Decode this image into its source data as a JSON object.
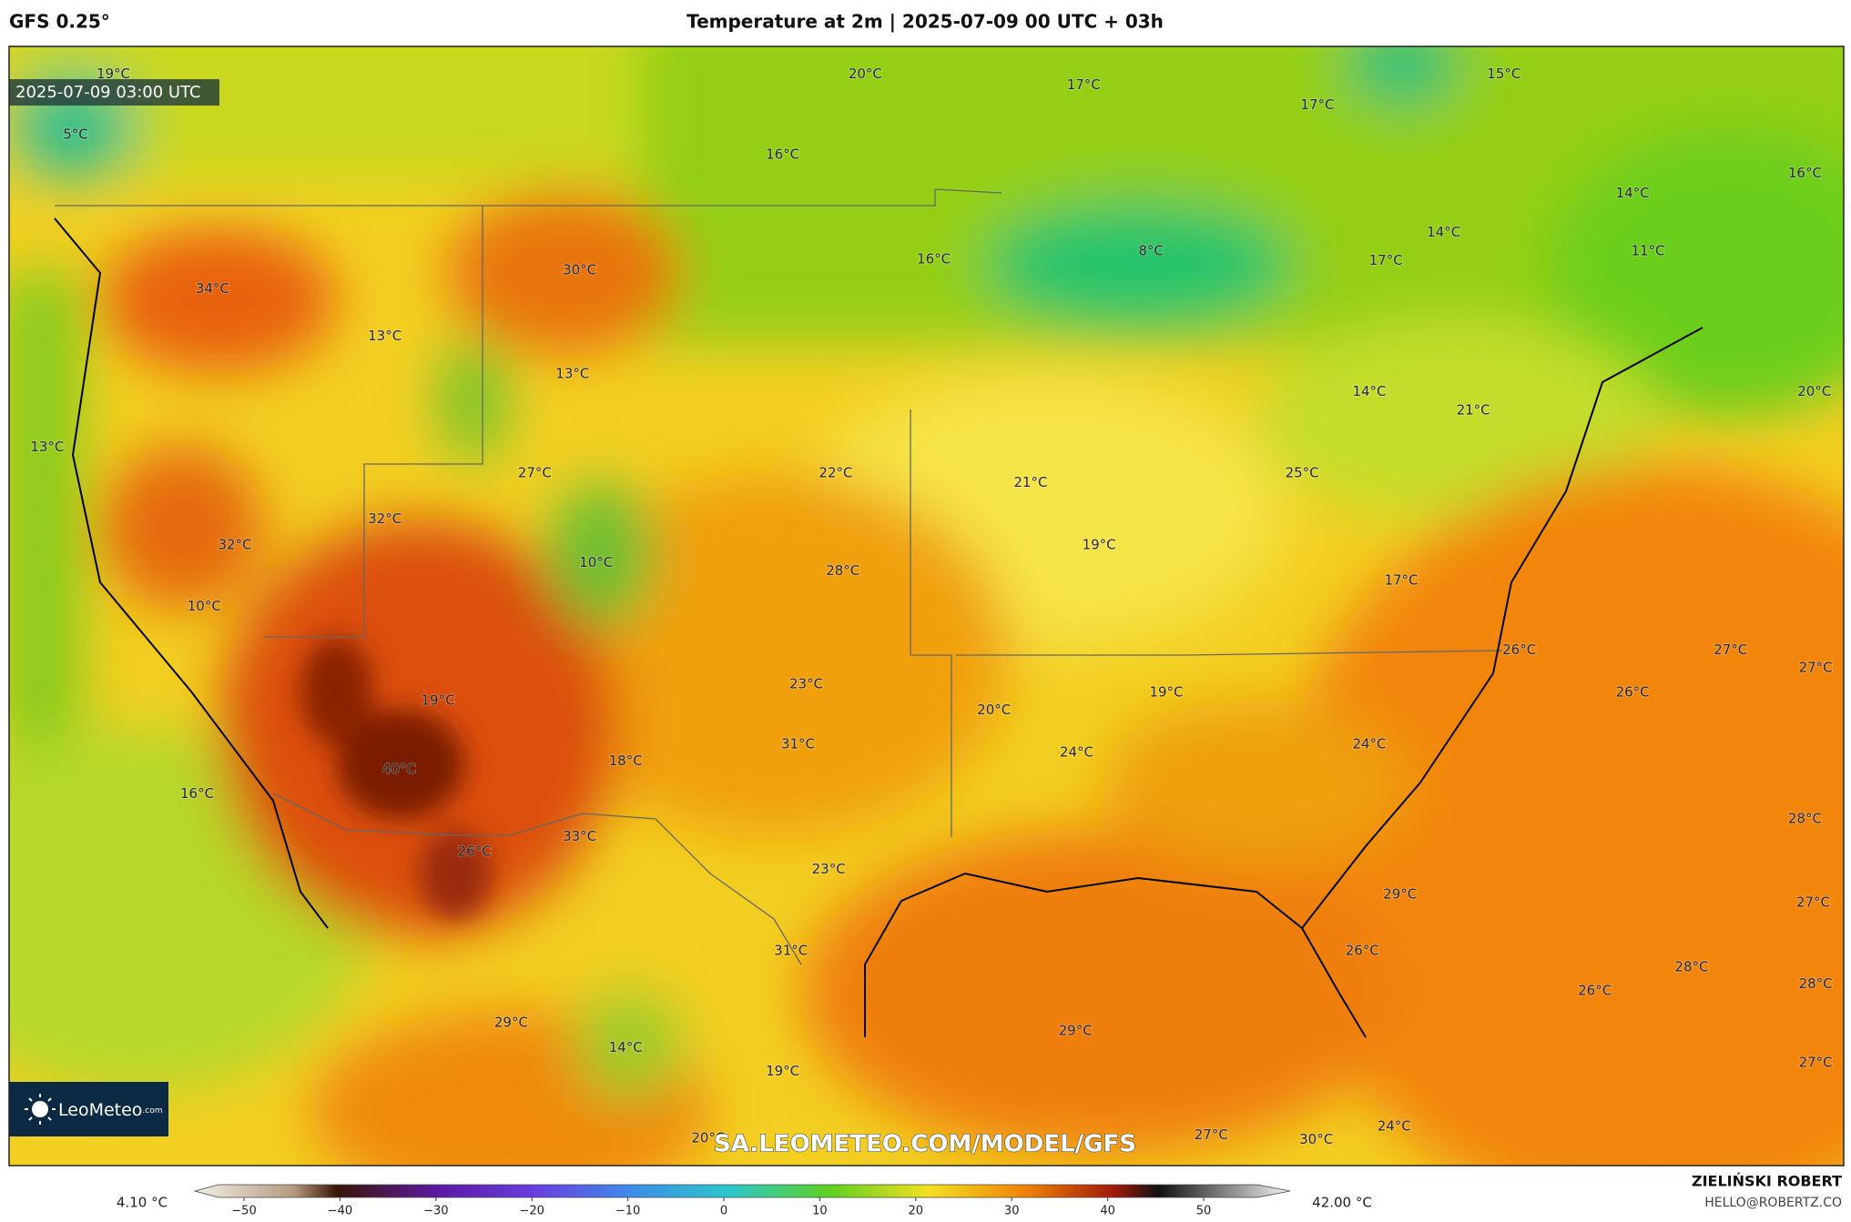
{
  "header": {
    "model": "GFS 0.25°",
    "title": "Temperature at 2m | 2025-07-09 00 UTC + 03h"
  },
  "map": {
    "valid_time": "2025-07-09 03:00 UTC",
    "labels": [
      "19°C",
      "5°C",
      "20°C",
      "17°C",
      "17°C",
      "15°C",
      "16°C",
      "14°C",
      "16°C",
      "34°C",
      "30°C",
      "16°C",
      "8°C",
      "17°C",
      "14°C",
      "11°C",
      "13°C",
      "13°C",
      "14°C",
      "21°C",
      "20°C",
      "13°C",
      "27°C",
      "22°C",
      "21°C",
      "25°C",
      "32°C",
      "32°C",
      "10°C",
      "19°C",
      "28°C",
      "17°C",
      "10°C",
      "26°C",
      "27°C",
      "27°C",
      "23°C",
      "19°C",
      "20°C",
      "19°C",
      "26°C",
      "31°C",
      "18°C",
      "24°C",
      "24°C",
      "40°C",
      "16°C",
      "28°C",
      "33°C",
      "26°C",
      "23°C",
      "29°C",
      "27°C",
      "31°C",
      "26°C",
      "28°C",
      "28°C",
      "26°C",
      "29°C",
      "29°C",
      "14°C",
      "19°C",
      "27°C",
      "20°C",
      "27°C",
      "30°C",
      "24°C"
    ],
    "watermark": "SA.LEOMETEO.COM/MODEL/GFS",
    "logo_name": "LeoMeteo",
    "logo_suffix": ".com"
  },
  "colorbar": {
    "min_label": "4.10 °C",
    "max_label": "42.00 °C",
    "ticks": [
      {
        "value": -50,
        "label": "−50"
      },
      {
        "value": -40,
        "label": "−40"
      },
      {
        "value": -30,
        "label": "−30"
      },
      {
        "value": -20,
        "label": "−20"
      },
      {
        "value": -10,
        "label": "−10"
      },
      0,
      10,
      20,
      30,
      40,
      50
    ]
  },
  "credit": {
    "author": "ZIELIŃSKI ROBERT",
    "contact": "HELLO@ROBERTZ.CO"
  }
}
